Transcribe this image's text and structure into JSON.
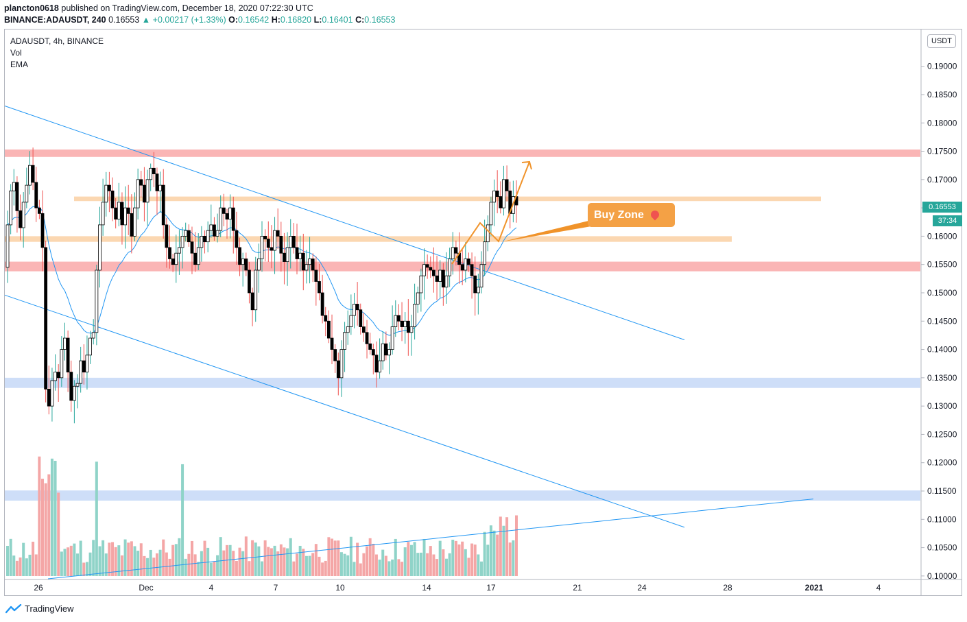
{
  "header": {
    "user": "plancton0618",
    "published_text": "published on TradingView.com, December 18, 2020 07:22:30 UTC",
    "symbol": "BINANCE:ADAUSDT, 240",
    "last": "0.16553",
    "change": "▲ +0.00217 (+1.33%)",
    "o_label": "O:",
    "o": "0.16542",
    "h_label": "H:",
    "h": "0.16820",
    "l_label": "L:",
    "l": "0.16401",
    "c_label": "C:",
    "c": "0.16553"
  },
  "legend": {
    "title": "ADAUSDT, 4h, BINANCE",
    "vol": "Vol",
    "ema": "EMA"
  },
  "price_axis": {
    "currency": "USDT",
    "current_price": "0.16553",
    "countdown": "37:34"
  },
  "annotation": {
    "label": "Buy Zone",
    "icon": "fire-icon"
  },
  "footer": {
    "brand": "TradingView",
    "icon": "tradingview-logo-icon"
  },
  "colors": {
    "up": "#26a69a",
    "down": "#ef5350",
    "candle_body": "#000000",
    "ema": "#2196f3",
    "trendline": "#2196f3",
    "resistance": "#f9a8a8",
    "orange_zone": "#fbd3a8",
    "blue_zone": "#c5d8f7",
    "arrow": "#f0932a",
    "buy_zone_bg": "#f4a145"
  },
  "chart_data": {
    "type": "candlestick",
    "ylim": [
      0.0995,
      0.1965
    ],
    "y_ticks": [
      "0.19000",
      "0.18500",
      "0.18000",
      "0.17500",
      "0.17000",
      "0.16500",
      "0.16000",
      "0.15500",
      "0.15000",
      "0.14500",
      "0.14000",
      "0.13500",
      "0.13000",
      "0.12500",
      "0.12000",
      "0.11500",
      "0.11000",
      "0.10500",
      "0.10000"
    ],
    "x_ticks": [
      "26",
      "Dec",
      "4",
      "7",
      "10",
      "14",
      "17",
      "21",
      "24",
      "28",
      "2021",
      "4"
    ],
    "zones": [
      {
        "kind": "resistance",
        "from": 0.174,
        "to": 0.1753
      },
      {
        "kind": "support",
        "from": 0.1538,
        "to": 0.1555
      },
      {
        "kind": "orange",
        "from": 0.1662,
        "to": 0.167
      },
      {
        "kind": "orange",
        "from": 0.159,
        "to": 0.16
      },
      {
        "kind": "blue",
        "from": 0.1332,
        "to": 0.135
      },
      {
        "kind": "blue",
        "from": 0.1133,
        "to": 0.1151
      }
    ],
    "trendlines": [
      {
        "from": [
          0,
          0.183
        ],
        "to": [
          1,
          0.1417
        ]
      },
      {
        "from": [
          0,
          0.1496
        ],
        "to": [
          1,
          0.1086
        ]
      },
      {
        "from": [
          0,
          0.0995
        ],
        "to": [
          1,
          0.1136
        ]
      }
    ],
    "closes": [
      0.162,
      0.168,
      0.1695,
      0.1645,
      0.1615,
      0.166,
      0.169,
      0.1725,
      0.1695,
      0.165,
      0.164,
      0.158,
      0.133,
      0.13,
      0.1345,
      0.136,
      0.135,
      0.14,
      0.142,
      0.136,
      0.131,
      0.1335,
      0.134,
      0.138,
      0.136,
      0.139,
      0.142,
      0.143,
      0.154,
      0.162,
      0.166,
      0.169,
      0.168,
      0.165,
      0.163,
      0.166,
      0.162,
      0.165,
      0.164,
      0.16,
      0.165,
      0.17,
      0.169,
      0.166,
      0.17,
      0.172,
      0.171,
      0.168,
      0.169,
      0.162,
      0.158,
      0.156,
      0.155,
      0.157,
      0.158,
      0.16,
      0.161,
      0.159,
      0.157,
      0.155,
      0.158,
      0.16,
      0.159,
      0.161,
      0.162,
      0.16,
      0.161,
      0.165,
      0.164,
      0.163,
      0.165,
      0.161,
      0.158,
      0.155,
      0.156,
      0.154,
      0.15,
      0.147,
      0.154,
      0.156,
      0.16,
      0.1595,
      0.158,
      0.1575,
      0.161,
      0.16,
      0.157,
      0.1555,
      0.158,
      0.16,
      0.158,
      0.156,
      0.157,
      0.154,
      0.155,
      0.156,
      0.154,
      0.152,
      0.15,
      0.146,
      0.145,
      0.142,
      0.14,
      0.138,
      0.135,
      0.14,
      0.143,
      0.144,
      0.146,
      0.148,
      0.147,
      0.144,
      0.143,
      0.141,
      0.14,
      0.139,
      0.136,
      0.138,
      0.141,
      0.139,
      0.14,
      0.144,
      0.146,
      0.145,
      0.144,
      0.145,
      0.143,
      0.144,
      0.148,
      0.15,
      0.153,
      0.155,
      0.1545,
      0.154,
      0.153,
      0.152,
      0.154,
      0.151,
      0.153,
      0.156,
      0.158,
      0.157,
      0.155,
      0.154,
      0.156,
      0.155,
      0.153,
      0.15,
      0.151,
      0.155,
      0.159,
      0.162,
      0.166,
      0.168,
      0.167,
      0.165,
      0.17,
      0.168,
      0.164,
      0.167,
      0.1655
    ],
    "volumes": "relative volume bars (green = up, red = down)"
  }
}
